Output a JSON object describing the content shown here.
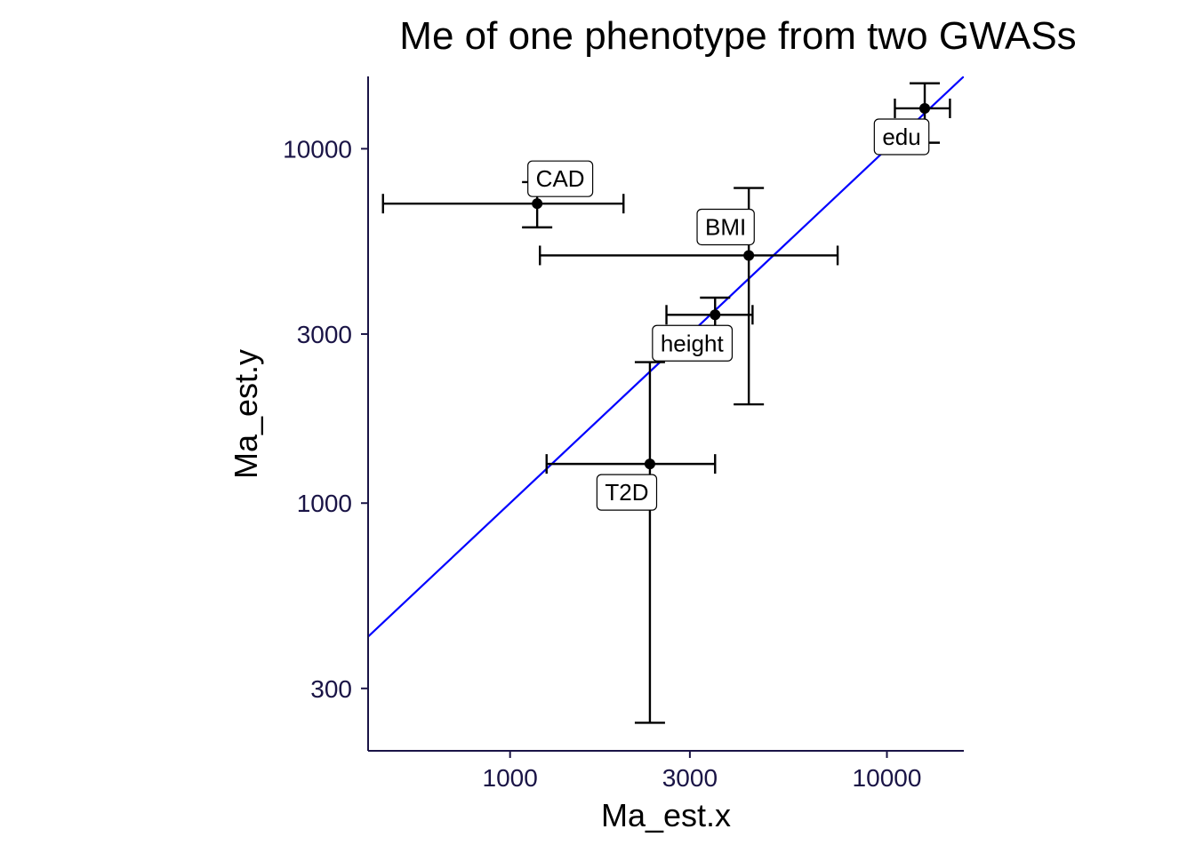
{
  "chart_data": {
    "type": "scatter",
    "title": "Me of one phenotype from two GWASs",
    "xlabel": "Ma_est.x",
    "ylabel": "Ma_est.y",
    "x_scale": "log10",
    "y_scale": "log10",
    "xlim": [
      420,
      16000
    ],
    "ylim": [
      200,
      16000
    ],
    "x_ticks": [
      {
        "value": 1000,
        "label": "1000"
      },
      {
        "value": 3000,
        "label": "3000"
      },
      {
        "value": 10000,
        "label": "10000"
      }
    ],
    "y_ticks": [
      {
        "value": 300,
        "label": "300"
      },
      {
        "value": 1000,
        "label": "1000"
      },
      {
        "value": 3000,
        "label": "3000"
      },
      {
        "value": 10000,
        "label": "10000"
      }
    ],
    "grid": false,
    "reference_line": {
      "type": "identity",
      "label": "",
      "color": "#0000ff"
    },
    "points": [
      {
        "label": "CAD",
        "x": 1180,
        "y": 7000,
        "xmin": 460,
        "xmax": 2000,
        "ymin": 6000,
        "ymax": 8050
      },
      {
        "label": "BMI",
        "x": 4300,
        "y": 5000,
        "xmin": 1200,
        "xmax": 7400,
        "ymin": 1900,
        "ymax": 7750
      },
      {
        "label": "height",
        "x": 3500,
        "y": 3400,
        "xmin": 2600,
        "xmax": 4400,
        "ymin": 3000,
        "ymax": 3800
      },
      {
        "label": "T2D",
        "x": 2350,
        "y": 1290,
        "xmin": 1250,
        "xmax": 3500,
        "ymin": 240,
        "ymax": 2500
      },
      {
        "label": "edu",
        "x": 12600,
        "y": 13000,
        "xmin": 10500,
        "xmax": 14700,
        "ymin": 10400,
        "ymax": 15300
      }
    ],
    "colors": {
      "axis": "#1a1446",
      "identity_line": "#0000ff",
      "points": "#000000"
    }
  }
}
